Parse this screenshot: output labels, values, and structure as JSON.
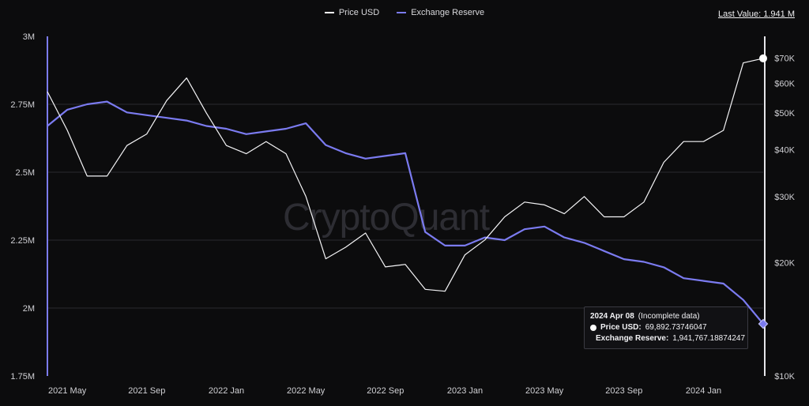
{
  "legend": {
    "price_label": "Price USD",
    "reserve_label": "Exchange Reserve"
  },
  "last_value": "Last Value: 1.941 M",
  "watermark": "CryptoQuant",
  "tooltip": {
    "date": "2024 Apr 08",
    "note": "(Incomplete data)",
    "price_label": "Price USD:",
    "price_value": "69,892.73746047",
    "reserve_label": "Exchange Reserve:",
    "reserve_value": "1,941,767.18874247"
  },
  "colors": {
    "background": "#0c0c0d",
    "price": "#ffffff",
    "reserve": "#7b7bf0",
    "grid": "#2a2a30"
  },
  "chart_data": {
    "type": "line",
    "title": "",
    "x_tick_labels": [
      "2021 May",
      "2021 Sep",
      "2022 Jan",
      "2022 May",
      "2022 Sep",
      "2023 Jan",
      "2023 May",
      "2023 Sep",
      "2024 Jan"
    ],
    "y_left": {
      "label": "",
      "range": [
        1750000,
        3000000
      ],
      "tick_labels": [
        "3M",
        "2.75M",
        "2.5M",
        "2.25M",
        "2M",
        "1.75M"
      ]
    },
    "y_right": {
      "label": "",
      "scale": "log",
      "range": [
        10000,
        80000
      ],
      "tick_labels": [
        "$70K",
        "$60K",
        "$50K",
        "$40K",
        "$30K",
        "$20K",
        "$10K"
      ]
    },
    "legend_position": "top-center",
    "grid": true,
    "x_months": [
      "2021-04",
      "2021-05",
      "2021-06",
      "2021-07",
      "2021-08",
      "2021-09",
      "2021-10",
      "2021-11",
      "2021-12",
      "2022-01",
      "2022-02",
      "2022-03",
      "2022-04",
      "2022-05",
      "2022-06",
      "2022-07",
      "2022-08",
      "2022-09",
      "2022-10",
      "2022-11",
      "2022-12",
      "2023-01",
      "2023-02",
      "2023-03",
      "2023-04",
      "2023-05",
      "2023-06",
      "2023-07",
      "2023-08",
      "2023-09",
      "2023-10",
      "2023-11",
      "2023-12",
      "2024-01",
      "2024-02",
      "2024-03",
      "2024-04"
    ],
    "series": [
      {
        "name": "Price USD",
        "axis": "right",
        "values": [
          57000,
          45000,
          34000,
          34000,
          41000,
          44000,
          54000,
          62000,
          50000,
          41000,
          39000,
          42000,
          39000,
          30000,
          20500,
          22000,
          24000,
          19500,
          19800,
          17000,
          16800,
          21000,
          23000,
          26500,
          29000,
          28500,
          27000,
          30000,
          26500,
          26500,
          29000,
          37000,
          42000,
          42000,
          45000,
          68000,
          69900
        ]
      },
      {
        "name": "Exchange Reserve",
        "axis": "left",
        "values": [
          2670000,
          2730000,
          2750000,
          2760000,
          2720000,
          2710000,
          2700000,
          2690000,
          2670000,
          2660000,
          2640000,
          2650000,
          2660000,
          2680000,
          2600000,
          2570000,
          2550000,
          2560000,
          2570000,
          2280000,
          2230000,
          2230000,
          2260000,
          2250000,
          2290000,
          2300000,
          2260000,
          2240000,
          2210000,
          2180000,
          2170000,
          2150000,
          2110000,
          2100000,
          2090000,
          2030000,
          1941767
        ]
      }
    ]
  }
}
